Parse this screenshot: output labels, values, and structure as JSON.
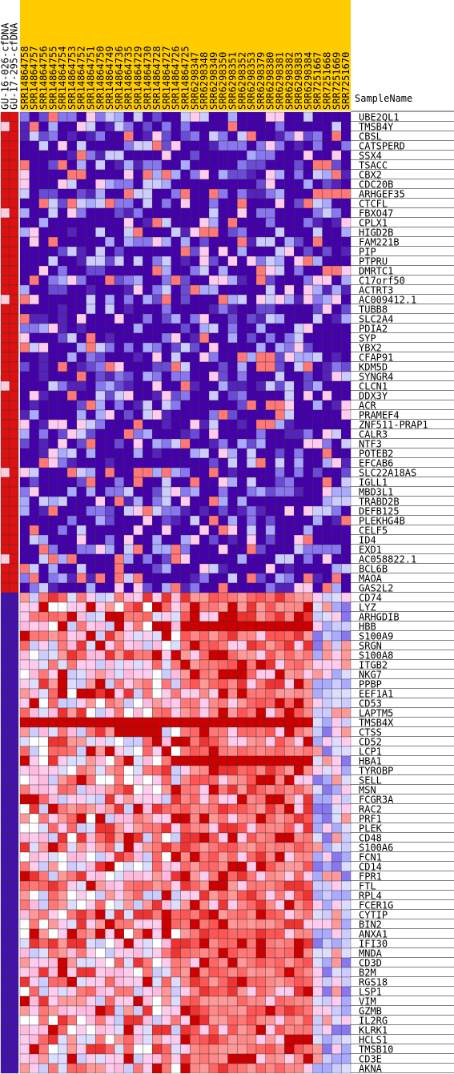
{
  "chart_data": {
    "type": "heatmap",
    "title": "",
    "header_label": "SampleName",
    "class_columns": [
      "GU-16-026-cfDNA",
      "GU-17-295-cfDNA"
    ],
    "samples": [
      "SRR14864758",
      "SRR14864757",
      "SRR14864756",
      "SRR14864755",
      "SRR14864754",
      "SRR14864753",
      "SRR14864752",
      "SRR14864751",
      "SRR14864750",
      "SRR14864749",
      "SRR14864736",
      "SRR14864735",
      "SRR14864729",
      "SRR14864730",
      "SRR14864728",
      "SRR14864727",
      "SRR14864726",
      "SRR14864725",
      "SRR6298347",
      "SRR6298348",
      "SRR6298349",
      "SRR6298350",
      "SRR6298351",
      "SRR6298352",
      "SRR6298353",
      "SRR6298379",
      "SRR6298380",
      "SRR6298381",
      "SRR6298382",
      "SRR6298383",
      "SRR6298384",
      "SRR7251667",
      "SRR7251668",
      "SRR7251669",
      "SRR7251670"
    ],
    "genes_up": [
      "UBE2QL1",
      "TMSB4Y",
      "CBSL",
      "CATSPERD",
      "SSX4",
      "TSACC",
      "CBX2",
      "CDC20B",
      "ARHGEF35",
      "CTCFL",
      "FBXO47",
      "CPLX1",
      "HIGD2B",
      "FAM221B",
      "PIP",
      "PTPRU",
      "DMRTC1",
      "C17orf50",
      "ACTRT3",
      "AC009412.1",
      "TUBB8",
      "SLC2A4",
      "PDIA2",
      "SYP",
      "YBX2",
      "CFAP91",
      "KDM5D",
      "SYNGR4",
      "CLCN1",
      "DDX3Y",
      "ACR",
      "PRAMEF4",
      "ZNF511-PRAP1",
      "CALR3",
      "NTF3",
      "POTEB2",
      "EFCAB6",
      "SLC22A18AS",
      "IGLL1",
      "MBD3L1",
      "TRABD2B",
      "DEFB125",
      "PLEKHG4B",
      "CELF5",
      "ID4",
      "EXD1",
      "AC058822.1",
      "BCL6B",
      "MAOA",
      "GAS2L2"
    ],
    "genes_down": [
      "CD74",
      "LYZ",
      "ARHGDIB",
      "HBB",
      "S100A9",
      "SRGN",
      "S100A8",
      "ITGB2",
      "NKG7",
      "PPBP",
      "EEF1A1",
      "CD53",
      "LAPTM5",
      "TMSB4X",
      "CTSS",
      "CD52",
      "LCP1",
      "HBA1",
      "TYROBP",
      "SELL",
      "MSN",
      "FCGR3A",
      "RAC2",
      "PRF1",
      "PLEK",
      "CD48",
      "S100A6",
      "FCN1",
      "CD14",
      "FPR1",
      "FTL",
      "RPL4",
      "FCER1G",
      "CYTIP",
      "BIN2",
      "ANXA1",
      "IFI30",
      "MNDA",
      "CD3D",
      "B2M",
      "RGS18",
      "LSP1",
      "VIM",
      "GZMB",
      "IL2RG",
      "KLRK1",
      "HCLS1",
      "TMSB10",
      "CD3E",
      "AKNA"
    ],
    "color_scale": {
      "low": "#4400aa",
      "mid_low": "#ccccff",
      "mid": "#ffccee",
      "mid_high": "#ff7777",
      "high": "#cc0000"
    },
    "class_colors": {
      "up": "#dd1111",
      "down": "#4411aa"
    },
    "header_bg": "#ffcc00"
  }
}
